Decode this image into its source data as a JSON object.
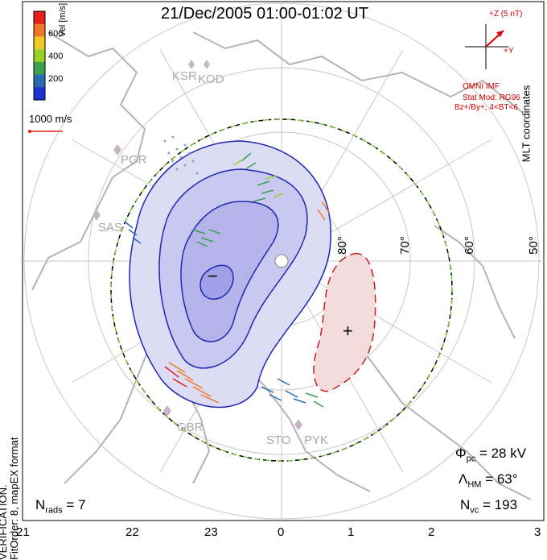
{
  "title": "21/Dec/2005 01:00-01:02 UT",
  "vel_legend": {
    "label": "Vel [m/s]",
    "ticks": [
      "600",
      "400",
      "200"
    ],
    "colors": [
      "#e61e1e",
      "#f07828",
      "#f0c828",
      "#9ad22a",
      "#3ca050",
      "#2a6ab0",
      "#1e32d2"
    ]
  },
  "scale_bar": {
    "label": "1000 m/s",
    "color": "#e61e1e"
  },
  "left_notice": {
    "line1": "NOTE: FOR PREVIEW PURPOSES ONLY. PLEASE CONTACT VT-SD STAFF FOR VERIFICATION.",
    "line2": "FitOrder: 8, mapEX format"
  },
  "mlt_label": "MLT coordinates",
  "imf": {
    "z_label": "+Z (5 nT)",
    "y_label": "+Y",
    "line1": "OMNI IMF",
    "line2": "Stat Mod: RG96",
    "line3": "Bz+/By+, 4<BT<6",
    "color": "#d40000"
  },
  "stations": [
    "KSR",
    "KOD",
    "PGR",
    "SAS",
    "GBR",
    "STO",
    "PYK"
  ],
  "lat_labels": [
    "80°",
    "70°",
    "60°",
    "50°"
  ],
  "contour_marks": {
    "minus": "−",
    "plus": "+"
  },
  "stats": {
    "phi_pc": "= 28 kV",
    "lambda_hm": "= 63°",
    "n_vc": "= 193",
    "n_rads": "= 7"
  },
  "mlt_ticks": [
    "21",
    "22",
    "23",
    "0",
    "1",
    "2",
    "3"
  ],
  "colors": {
    "neg_cell_fill": "#b4b4f0",
    "pos_cell_fill": "#f0c8c8",
    "neg_contour": "#1e28b4",
    "pos_contour": "#c81e1e",
    "coastline": "#b4b4b4",
    "grid": "#c8c8c8"
  }
}
